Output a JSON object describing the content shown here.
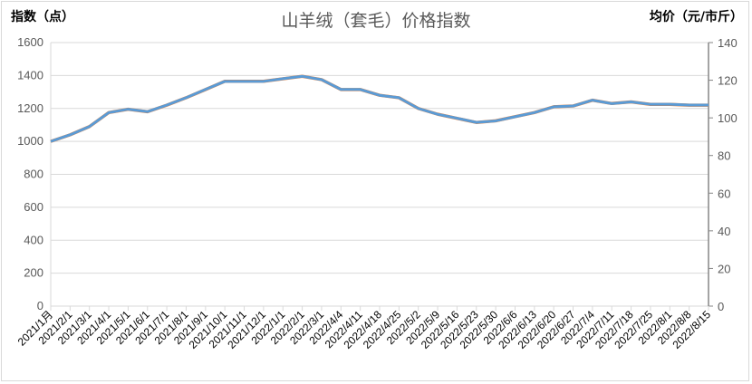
{
  "chart_data": {
    "type": "line",
    "title": "山羊绒（套毛）价格指数",
    "ylabel": "指数（点）",
    "y2label": "均价（元/市斤）",
    "ylim": [
      0,
      1600
    ],
    "yticks": [
      0,
      200,
      400,
      600,
      800,
      1000,
      1200,
      1400,
      1600
    ],
    "y2lim": [
      0,
      140
    ],
    "y2ticks": [
      0,
      20,
      40,
      60,
      80,
      100,
      120,
      140
    ],
    "grid": true,
    "categories": [
      "2021/1月",
      "2021/2/1",
      "2021/3/1",
      "2021/4/1",
      "2021/5/1",
      "2021/6/1",
      "2021/7/1",
      "2021/8/1",
      "2021/9/1",
      "2021/10/1",
      "2021/11/1",
      "2021/12/1",
      "2022/1/1",
      "2022/2/1",
      "2022/3/1",
      "2022/4/4",
      "2022/4/11",
      "2022/4/18",
      "2022/4/25",
      "2022/5/2",
      "2022/5/9",
      "2022/5/16",
      "2022/5/23",
      "2022/5/30",
      "2022/6/6",
      "2022/6/13",
      "2022/6/20",
      "2022/6/27",
      "2022/7/4",
      "2022/7/11",
      "2022/7/18",
      "2022/7/25",
      "2022/8/1",
      "2022/8/8",
      "2022/8/15"
    ],
    "series": [
      {
        "axis": "left",
        "color": "#ed7d31",
        "values": [
          1000,
          1040,
          1090,
          1175,
          1195,
          1180,
          1220,
          1265,
          1315,
          1365,
          1365,
          1365,
          1380,
          1395,
          1375,
          1315,
          1315,
          1280,
          1265,
          1200,
          1165,
          1140,
          1115,
          1125,
          1150,
          1175,
          1210,
          1215,
          1250,
          1230,
          1240,
          1225,
          1225,
          1220,
          1220
        ]
      },
      {
        "axis": "right",
        "color": "#5b9bd5",
        "values": [
          87.5,
          91.0,
          95.4,
          102.8,
          104.6,
          103.3,
          106.8,
          110.7,
          115.1,
          119.4,
          119.4,
          119.4,
          120.8,
          122.1,
          120.3,
          115.1,
          115.1,
          112.0,
          110.7,
          105.0,
          101.9,
          99.8,
          97.6,
          98.4,
          100.6,
          102.8,
          105.9,
          106.3,
          109.4,
          107.6,
          108.5,
          107.2,
          107.2,
          106.8,
          106.8
        ]
      }
    ]
  }
}
